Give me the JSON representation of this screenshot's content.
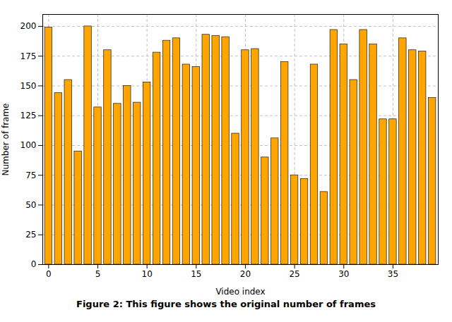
{
  "chart_data": {
    "type": "bar",
    "caption": "Figure 2: This figure shows the original number of frames",
    "xlabel": "Video index",
    "ylabel": "Number of frame",
    "x": [
      0,
      1,
      2,
      3,
      4,
      5,
      6,
      7,
      8,
      9,
      10,
      11,
      12,
      13,
      14,
      15,
      16,
      17,
      18,
      19,
      20,
      21,
      22,
      23,
      24,
      25,
      26,
      27,
      28,
      29,
      30,
      31,
      32,
      33,
      34,
      35,
      36,
      37,
      38,
      39
    ],
    "values": [
      199,
      144,
      155,
      95,
      200,
      132,
      180,
      135,
      150,
      136,
      153,
      178,
      188,
      190,
      168,
      166,
      193,
      192,
      191,
      110,
      180,
      181,
      90,
      106,
      170,
      75,
      72,
      168,
      61,
      197,
      185,
      155,
      197,
      185,
      122,
      122,
      190,
      180,
      179,
      140
    ],
    "color": "#FFA500",
    "xlim": [
      -0.6,
      39.6
    ],
    "xticks": [
      0,
      5,
      10,
      15,
      20,
      25,
      30,
      35
    ],
    "ylim": [
      0,
      210
    ],
    "yticks": [
      0,
      25,
      50,
      75,
      100,
      125,
      150,
      175,
      200
    ],
    "grid": true
  }
}
